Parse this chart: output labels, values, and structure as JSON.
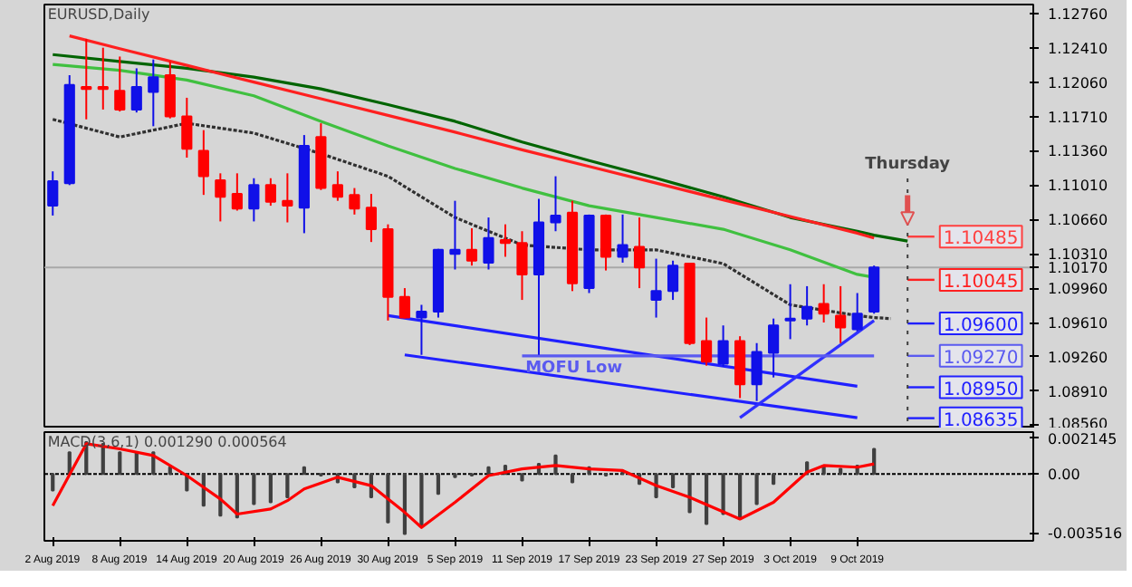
{
  "chart_data": [
    {
      "type": "candlestick",
      "title": "EURUSD,Daily",
      "categories": [
        null,
        null,
        null,
        null,
        null,
        null,
        null,
        null,
        null,
        null,
        null,
        null,
        null,
        null,
        null,
        null,
        null,
        null,
        null,
        null,
        null,
        null,
        null,
        null,
        null,
        null,
        null,
        null,
        null,
        null,
        null,
        null,
        null,
        null,
        null,
        null,
        null,
        null,
        null,
        null,
        null,
        null,
        null,
        null,
        null,
        null,
        null,
        null,
        null,
        null,
        null,
        null,
        null,
        null,
        null,
        null,
        null,
        null,
        null
      ],
      "ohlc": [
        [
          1.108,
          1.1115,
          1.107,
          1.1105
        ],
        [
          1.1103,
          1.1213,
          1.1101,
          1.1203
        ],
        [
          1.1201,
          1.125,
          1.1168,
          1.1199
        ],
        [
          1.1201,
          1.1241,
          1.1178,
          1.1199
        ],
        [
          1.1197,
          1.1232,
          1.1176,
          1.1178
        ],
        [
          1.1178,
          1.122,
          1.1175,
          1.1201
        ],
        [
          1.1196,
          1.1229,
          1.1161,
          1.1211
        ],
        [
          1.1213,
          1.1227,
          1.1169,
          1.1171
        ],
        [
          1.1171,
          1.119,
          1.1129,
          1.1138
        ],
        [
          1.1136,
          1.1157,
          1.1091,
          1.111
        ],
        [
          1.1106,
          1.1113,
          1.1064,
          1.1089
        ],
        [
          1.1092,
          1.1113,
          1.1075,
          1.1077
        ],
        [
          1.1077,
          1.1108,
          1.1064,
          1.1101
        ],
        [
          1.1101,
          1.1108,
          1.108,
          1.1084
        ],
        [
          1.1085,
          1.1113,
          1.1063,
          1.108
        ],
        [
          1.1078,
          1.1152,
          1.1052,
          1.1141
        ],
        [
          1.115,
          1.1164,
          1.1096,
          1.1098
        ],
        [
          1.1101,
          1.1115,
          1.1085,
          1.1089
        ],
        [
          1.1091,
          1.1098,
          1.1071,
          1.1077
        ],
        [
          1.1078,
          1.1092,
          1.1043,
          1.1056
        ],
        [
          1.1056,
          1.1061,
          1.0963,
          1.0987
        ],
        [
          1.0987,
          1.0996,
          1.0965,
          1.0966
        ],
        [
          1.0966,
          1.0979,
          1.0928,
          1.0972
        ],
        [
          1.0972,
          1.1036,
          1.0966,
          1.1035
        ],
        [
          1.1031,
          1.1085,
          1.1015,
          1.1035
        ],
        [
          1.1035,
          1.1057,
          1.1019,
          1.1024
        ],
        [
          1.1022,
          1.1068,
          1.1015,
          1.1047
        ],
        [
          1.1045,
          1.1061,
          1.1028,
          1.1042
        ],
        [
          1.1042,
          1.1054,
          1.0984,
          1.101
        ],
        [
          1.101,
          1.1087,
          1.0928,
          1.1063
        ],
        [
          1.1063,
          1.111,
          1.1054,
          1.107
        ],
        [
          1.1073,
          1.1085,
          1.0993,
          1.1001
        ],
        [
          1.0996,
          1.1071,
          1.0991,
          1.107
        ],
        [
          1.107,
          1.1071,
          1.1014,
          1.1028
        ],
        [
          1.1028,
          1.1071,
          1.1022,
          1.104
        ],
        [
          1.1038,
          1.1068,
          1.0996,
          1.1017
        ],
        [
          1.0984,
          1.1026,
          1.0966,
          1.0993
        ],
        [
          1.0993,
          1.1024,
          1.0984,
          1.1019
        ],
        [
          1.1021,
          1.1021,
          1.0938,
          1.094
        ],
        [
          1.0942,
          1.0966,
          1.0917,
          1.0921
        ],
        [
          1.0919,
          1.0958,
          1.0916,
          1.0942
        ],
        [
          1.0942,
          1.0947,
          1.0884,
          1.0898
        ],
        [
          1.0898,
          1.094,
          1.0881,
          1.0931
        ],
        [
          1.093,
          1.0965,
          1.0905,
          1.0958
        ],
        [
          1.0963,
          1.1,
          1.0944,
          1.0965
        ],
        [
          1.0965,
          1.0998,
          1.0958,
          1.0977
        ],
        [
          1.098,
          1.1,
          1.0961,
          1.097
        ],
        [
          1.0968,
          1.0998,
          1.094,
          1.0956
        ],
        [
          1.0954,
          1.0991,
          1.0952,
          1.097
        ],
        [
          1.0972,
          1.1019,
          1.097,
          1.1017
        ],
        null,
        null,
        null,
        null,
        null,
        null,
        null,
        null,
        null
      ],
      "colors": [
        "#1010e8",
        "#1010e8",
        "#ff0000",
        "#ff0000",
        "#ff0000",
        "#1010e8",
        "#1010e8",
        "#ff0000",
        "#ff0000",
        "#ff0000",
        "#ff0000",
        "#ff0000",
        "#1010e8",
        "#ff0000",
        "#ff0000",
        "#1010e8",
        "#ff0000",
        "#ff0000",
        "#ff0000",
        "#ff0000",
        "#ff0000",
        "#ff0000",
        "#1010e8",
        "#1010e8",
        "#1010e8",
        "#ff0000",
        "#1010e8",
        "#ff0000",
        "#ff0000",
        "#1010e8",
        "#1010e8",
        "#ff0000",
        "#1010e8",
        "#ff0000",
        "#1010e8",
        "#ff0000",
        "#1010e8",
        "#1010e8",
        "#ff0000",
        "#ff0000",
        "#1010e8",
        "#ff0000",
        "#1010e8",
        "#1010e8",
        "#1010e8",
        "#1010e8",
        "#ff0000",
        "#ff0000",
        "#1010e8",
        "#1010e8",
        null,
        null,
        null,
        null,
        null,
        null,
        null,
        null,
        null
      ],
      "series": [
        {
          "type": "line",
          "color": "#40c040",
          "values": [
            1.1224,
            null,
            null,
            null,
            1.1218,
            null,
            null,
            null,
            1.1208,
            null,
            null,
            null,
            1.1192,
            null,
            null,
            null,
            1.1166,
            null,
            null,
            null,
            1.1141,
            null,
            null,
            null,
            1.1118,
            null,
            null,
            null,
            1.1098,
            null,
            null,
            null,
            1.108,
            null,
            null,
            null,
            1.1068,
            null,
            null,
            null,
            1.1056,
            null,
            null,
            null,
            1.1035,
            null,
            null,
            null,
            1.101,
            1.1007,
            null,
            null,
            null,
            null,
            null,
            null,
            null,
            null,
            null
          ]
        },
        {
          "type": "line",
          "color": "#006400",
          "values": [
            1.1234,
            null,
            null,
            null,
            1.1227,
            null,
            null,
            null,
            1.122,
            null,
            null,
            null,
            1.1211,
            null,
            null,
            null,
            1.1199,
            null,
            null,
            null,
            1.1183,
            null,
            null,
            null,
            1.1166,
            null,
            null,
            null,
            1.1145,
            null,
            null,
            null,
            1.1126,
            null,
            null,
            null,
            1.1108,
            null,
            null,
            null,
            1.1089,
            null,
            null,
            null,
            1.1068,
            null,
            null,
            null,
            1.1054,
            1.105,
            1.1047,
            1.1044,
            null,
            null,
            null,
            null,
            null,
            null,
            null
          ]
        },
        {
          "type": "line",
          "color": "#ff2020",
          "values": [
            null,
            1.1253,
            null,
            null,
            1.124,
            null,
            null,
            null,
            1.1223,
            null,
            null,
            null,
            1.1206,
            null,
            null,
            null,
            1.1189,
            null,
            null,
            null,
            1.1172,
            null,
            null,
            null,
            1.1155,
            null,
            null,
            null,
            1.1137,
            null,
            null,
            null,
            1.112,
            null,
            null,
            null,
            1.1103,
            null,
            null,
            null,
            1.1086,
            null,
            null,
            null,
            1.1069,
            null,
            null,
            null,
            1.1052,
            1.1047,
            null,
            null,
            null,
            null,
            null,
            null,
            null,
            null,
            null
          ]
        },
        {
          "type": "line",
          "color": "#303030",
          "line_style": "dotted",
          "values": [
            1.1168,
            null,
            null,
            null,
            1.115,
            null,
            null,
            null,
            1.1164,
            null,
            null,
            null,
            1.1154,
            null,
            null,
            null,
            1.1133,
            null,
            null,
            null,
            1.111,
            null,
            null,
            null,
            1.1068,
            null,
            null,
            null,
            1.104,
            null,
            null,
            null,
            1.1035,
            null,
            null,
            null,
            1.1035,
            null,
            null,
            null,
            1.1021,
            null,
            null,
            null,
            1.0979,
            null,
            null,
            null,
            1.0968,
            1.0966,
            1.0965,
            null,
            null,
            null,
            null,
            null,
            null,
            null,
            null
          ]
        },
        {
          "type": "line",
          "color": "#2020ff",
          "values": [
            null,
            null,
            null,
            null,
            null,
            null,
            null,
            null,
            null,
            null,
            null,
            null,
            null,
            null,
            null,
            null,
            null,
            null,
            null,
            null,
            1.0968,
            null,
            null,
            null,
            null,
            null,
            null,
            null,
            null,
            null,
            null,
            null,
            null,
            null,
            null,
            null,
            null,
            null,
            null,
            null,
            null,
            null,
            null,
            null,
            null,
            null,
            null,
            null,
            1.0896,
            null,
            null,
            null,
            null,
            null,
            null,
            null,
            null,
            null,
            null
          ]
        },
        {
          "type": "line",
          "color": "#2020ff",
          "values": [
            null,
            null,
            null,
            null,
            null,
            null,
            null,
            null,
            null,
            null,
            null,
            null,
            null,
            null,
            null,
            null,
            null,
            null,
            null,
            null,
            null,
            1.0928,
            null,
            null,
            null,
            null,
            null,
            null,
            null,
            null,
            null,
            null,
            null,
            null,
            null,
            null,
            null,
            null,
            null,
            null,
            null,
            null,
            null,
            null,
            null,
            null,
            null,
            null,
            1.0864,
            null,
            null,
            null,
            null,
            null,
            null,
            null,
            null,
            null,
            null
          ]
        },
        {
          "type": "line",
          "color": "#3030ff",
          "values": [
            null,
            null,
            null,
            null,
            null,
            null,
            null,
            null,
            null,
            null,
            null,
            null,
            null,
            null,
            null,
            null,
            null,
            null,
            null,
            null,
            null,
            null,
            null,
            null,
            null,
            null,
            null,
            null,
            null,
            null,
            null,
            null,
            null,
            null,
            null,
            null,
            null,
            null,
            null,
            null,
            null,
            1.0864,
            null,
            null,
            null,
            null,
            null,
            null,
            null,
            1.0963,
            null,
            null,
            null,
            null,
            null,
            null,
            null,
            null,
            null
          ]
        },
        {
          "type": "line",
          "name": "MOFU Low",
          "color": "#5a5af0",
          "values": [
            null,
            null,
            null,
            null,
            null,
            null,
            null,
            null,
            null,
            null,
            null,
            null,
            null,
            null,
            null,
            null,
            null,
            null,
            null,
            null,
            null,
            null,
            null,
            null,
            null,
            null,
            null,
            null,
            1.0927,
            1.0927,
            1.0927,
            1.0927,
            1.0927,
            1.0927,
            1.0927,
            1.0927,
            1.0927,
            1.0927,
            1.0927,
            1.0927,
            1.0927,
            1.0927,
            1.0927,
            1.0927,
            1.0927,
            1.0927,
            1.0927,
            1.0927,
            1.0927,
            1.0927,
            null,
            null,
            null,
            null,
            null,
            null,
            null,
            null,
            null
          ]
        }
      ],
      "ylim": [
        1.0853,
        1.1285
      ],
      "yticks": [
        {
          "value": 1.1276,
          "label": "1.12760"
        },
        {
          "value": 1.1241,
          "label": "1.12410"
        },
        {
          "value": 1.1206,
          "label": "1.12060"
        },
        {
          "value": 1.1171,
          "label": "1.11710"
        },
        {
          "value": 1.1136,
          "label": "1.11360"
        },
        {
          "value": 1.1101,
          "label": "1.11010"
        },
        {
          "value": 1.1066,
          "label": "1.10660"
        },
        {
          "value": 1.1031,
          "label": "1.10310"
        },
        {
          "value": 1.1017,
          "label": "1.10170"
        },
        {
          "value": 1.0996,
          "label": "1.09960"
        },
        {
          "value": 1.0961,
          "label": "1.09610"
        },
        {
          "value": 1.0926,
          "label": "1.09260"
        },
        {
          "value": 1.0891,
          "label": "1.08910"
        },
        {
          "value": 1.0856,
          "label": "1.08560"
        }
      ],
      "ref_lines": [
        {
          "axis": "y",
          "value": 1.1017,
          "color": "#a8a8a8"
        },
        {
          "axis": "y",
          "value": 1.10485,
          "label": "1.10485",
          "color": "#ff4040"
        },
        {
          "axis": "y",
          "value": 1.10045,
          "label": "1.10045",
          "color": "#ff2020"
        },
        {
          "axis": "y",
          "value": 1.096,
          "label": "1.09600",
          "color": "#2020ff"
        },
        {
          "axis": "y",
          "value": 1.0927,
          "label": "1.09270",
          "color": "#5a5af0"
        },
        {
          "axis": "y",
          "value": 1.0895,
          "label": "1.08950",
          "color": "#2020ff"
        },
        {
          "axis": "y",
          "value": 1.08635,
          "label": "1.08635",
          "color": "#2020ff"
        }
      ],
      "annotations": [
        "Thursday"
      ],
      "tick_labels": "y"
    },
    {
      "type": "bar",
      "title": "MACD(3,6,1) 0.001290 0.000564",
      "categories": [
        "2 Aug 2019",
        null,
        null,
        null,
        "8 Aug 2019",
        null,
        null,
        null,
        "14 Aug 2019",
        null,
        null,
        null,
        "20 Aug 2019",
        null,
        null,
        null,
        "26 Aug 2019",
        null,
        null,
        null,
        "30 Aug 2019",
        null,
        null,
        null,
        "5 Sep 2019",
        null,
        null,
        null,
        "11 Sep 2019",
        null,
        null,
        null,
        "17 Sep 2019",
        null,
        null,
        null,
        "23 Sep 2019",
        null,
        null,
        null,
        "27 Sep 2019",
        null,
        null,
        null,
        "3 Oct 2019",
        null,
        null,
        null,
        "9 Oct 2019",
        null,
        null,
        null,
        null,
        null,
        null,
        null,
        null,
        null,
        null
      ],
      "series": [
        {
          "type": "bar",
          "color": "#404040",
          "values": [
            -0.001,
            0.0013,
            0.0019,
            0.0018,
            0.0013,
            0.0013,
            0.0013,
            0.0004,
            -0.001,
            -0.0019,
            -0.0025,
            -0.0026,
            -0.0018,
            -0.0017,
            -0.0014,
            0.0004,
            -0.0001,
            -0.0005,
            -0.0008,
            -0.0014,
            -0.0029,
            -0.0036,
            -0.0031,
            -0.0012,
            -0.0002,
            -0.0001,
            0.0004,
            0.0005,
            -0.0004,
            0.0006,
            0.0011,
            -0.0005,
            0.0004,
            -0.0001,
            0.0002,
            -0.0006,
            -0.0014,
            -0.0008,
            -0.0023,
            -0.003,
            -0.0024,
            -0.0027,
            -0.0018,
            -0.0006,
            0.0,
            0.0007,
            0.0005,
            0.0003,
            0.0005,
            0.0015,
            null,
            null,
            null,
            null,
            null,
            null,
            null,
            null,
            null
          ]
        },
        {
          "type": "line",
          "color": "#ff0000",
          "values": [
            -0.0019,
            null,
            0.0018,
            null,
            0.0015,
            null,
            0.0011,
            null,
            -0.0001,
            null,
            -0.0015,
            -0.0024,
            null,
            -0.0021,
            -0.0016,
            -0.0009,
            null,
            -0.0002,
            null,
            -0.0007,
            null,
            -0.0023,
            -0.0032,
            null,
            -0.0017,
            null,
            -0.0001,
            null,
            0.0003,
            null,
            0.0005,
            null,
            0.0003,
            null,
            0.0002,
            null,
            -0.0007,
            null,
            -0.0014,
            null,
            null,
            -0.0027,
            null,
            -0.0017,
            null,
            0.0001,
            0.0005,
            null,
            0.0004,
            0.0006,
            null,
            null,
            null,
            null,
            null,
            null,
            null,
            null,
            null
          ]
        }
      ],
      "ylim": [
        -0.004,
        0.0025
      ],
      "yticks": [
        {
          "value": 0.002145,
          "label": "0.002145"
        },
        {
          "value": 0,
          "label": "0.00"
        },
        {
          "value": -0.003516,
          "label": "-0.003516"
        }
      ],
      "ref_lines": [
        {
          "axis": "y",
          "value": 0,
          "color": "#000000",
          "line_style": "dotted"
        }
      ]
    }
  ]
}
